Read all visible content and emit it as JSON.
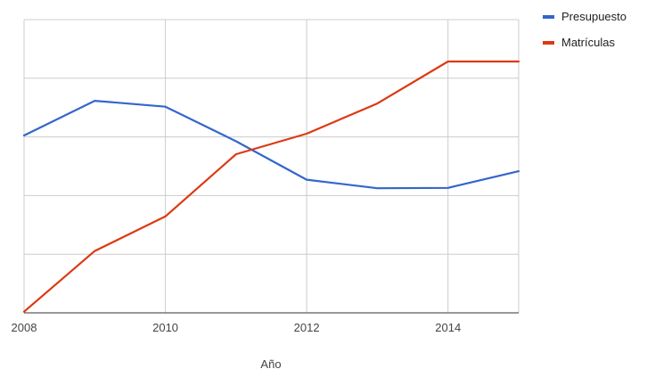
{
  "chart_data": {
    "type": "line",
    "xlabel": "Año",
    "ylabel": "",
    "x": [
      2008,
      2009,
      2010,
      2011,
      2012,
      2013,
      2014,
      2015
    ],
    "x_ticks": [
      "2008",
      "2010",
      "2012",
      "2014"
    ],
    "xlim": [
      2008,
      2015
    ],
    "ylim": [
      0,
      100
    ],
    "grid": true,
    "legend_position": "right",
    "series": [
      {
        "name": "Presupuesto",
        "color": "#3366cc",
        "values": [
          60.5,
          72.3,
          70.3,
          58.5,
          45.4,
          42.5,
          42.6,
          48.3
        ]
      },
      {
        "name": "Matrículas",
        "color": "#dc3912",
        "values": [
          0.4,
          21.1,
          32.9,
          54.1,
          61.1,
          71.4,
          85.7,
          85.7
        ]
      }
    ]
  }
}
